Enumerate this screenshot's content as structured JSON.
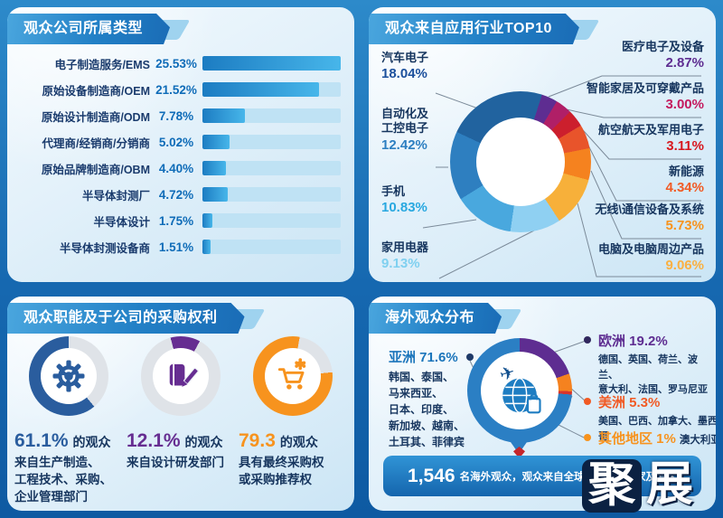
{
  "watermark": {
    "char1": "聚",
    "char2": "展"
  },
  "panels": {
    "company_type": {
      "title": "观众公司所属类型",
      "rows": [
        {
          "label": "电子制造服务/EMS",
          "value_text": "25.53%",
          "value": 25.53
        },
        {
          "label": "原始设备制造商/OEM",
          "value_text": "21.52%",
          "value": 21.52
        },
        {
          "label": "原始设计制造商/ODM",
          "value_text": "7.78%",
          "value": 7.78
        },
        {
          "label": "代理商/经销商/分销商",
          "value_text": "5.02%",
          "value": 5.02
        },
        {
          "label": "原始品牌制造商/OBM",
          "value_text": "4.40%",
          "value": 4.4
        },
        {
          "label": "半导体封测厂",
          "value_text": "4.72%",
          "value": 4.72
        },
        {
          "label": "半导体设计",
          "value_text": "1.75%",
          "value": 1.75
        },
        {
          "label": "半导体封测设备商",
          "value_text": "1.51%",
          "value": 1.51
        }
      ],
      "colors": {
        "fill_from": "#1c7cc2",
        "fill_to": "#47b6ea",
        "track": "#bfe2f4"
      }
    },
    "industry_top10": {
      "title": "观众来自应用行业TOP10",
      "items": [
        {
          "label": "汽车电子",
          "value_text": "18.04%",
          "value": 18.04,
          "color": "#21639f",
          "text_color": "#1b4f9c",
          "slot": "l0"
        },
        {
          "label": "医疗电子及设备",
          "value_text": "2.87%",
          "value": 2.87,
          "color": "#5e2d91",
          "text_color": "#5e2d91",
          "slot": "r0"
        },
        {
          "label": "智能家居及可穿戴产品",
          "value_text": "3.00%",
          "value": 3.0,
          "color": "#b01f67",
          "text_color": "#c41a5e",
          "slot": "r1"
        },
        {
          "label": "航空航天及军用电子",
          "value_text": "3.11%",
          "value": 3.11,
          "color": "#cc1f2d",
          "text_color": "#d7181f",
          "slot": "r2"
        },
        {
          "label": "新能源",
          "value_text": "4.34%",
          "value": 4.34,
          "color": "#e8542b",
          "text_color": "#f15a24",
          "slot": "r3"
        },
        {
          "label": "无线\\通信设备及系统",
          "value_text": "5.73%",
          "value": 5.73,
          "color": "#f5821f",
          "text_color": "#f7931e",
          "slot": "r4"
        },
        {
          "label": "电脑及电脑周边产品",
          "value_text": "9.06%",
          "value": 9.06,
          "color": "#f7b03a",
          "text_color": "#fbb040",
          "slot": "r5"
        },
        {
          "label": "家用电器",
          "value_text": "9.13%",
          "value": 9.13,
          "color": "#8fd0f2",
          "text_color": "#7fd0f0",
          "slot": "l3"
        },
        {
          "label": "手机",
          "value_text": "10.83%",
          "value": 10.83,
          "color": "#49a8de",
          "text_color": "#29a8e0",
          "slot": "l2"
        },
        {
          "label": "自动化及工控电子",
          "value_text": "12.42%",
          "value": 12.42,
          "color": "#2e7fc0",
          "text_color": "#2d7fc1",
          "slot": "l1"
        }
      ]
    },
    "roles": {
      "title": "观众职能及于公司的采购权利",
      "track_color": "#dfe3e8",
      "stats": [
        {
          "value_text": "61.1%",
          "pct": 61.1,
          "suffix": "的观众",
          "desc_lines": [
            "来自生产制造、",
            "工程技术、采购、",
            "企业管理部门"
          ],
          "color": "#2a5d9e",
          "icon": "gear-sync-icon"
        },
        {
          "value_text": "12.1%",
          "pct": 12.1,
          "suffix": "的观众",
          "desc_lines": [
            "来自设计研发部门"
          ],
          "color": "#662d91",
          "icon": "design-notebook-icon"
        },
        {
          "value_text": "79.3",
          "pct": 79.3,
          "suffix": "的观众",
          "desc_lines": [
            "具有最终采购权",
            "或采购推荐权"
          ],
          "color": "#f7931e",
          "icon": "purchase-cart-icon"
        }
      ]
    },
    "overseas": {
      "title": "海外观众分布",
      "regions": [
        {
          "name": "亚洲",
          "value_text": "71.6%",
          "value": 71.6,
          "color": "#2b7fc4",
          "text_color": "#1b75bb",
          "dot_color": "#1f3a68",
          "countries_lines": [
            "韩国、泰国、",
            "马来西亚、",
            "日本、印度、",
            "新加坡、越南、",
            "土耳其、菲律宾"
          ]
        },
        {
          "name": "欧洲",
          "value_text": "19.2%",
          "value": 19.2,
          "color": "#5e2d91",
          "text_color": "#5e2d91",
          "dot_color": "#30275d",
          "countries_lines": [
            "德国、英国、荷兰、波兰、",
            "意大利、法国、罗马尼亚"
          ]
        },
        {
          "name": "美洲",
          "value_text": "5.3%",
          "value": 5.3,
          "color": "#f5821f",
          "text_color": "#f15a24",
          "dot_color": "#f15a24",
          "countries_lines": [
            "美国、巴西、加拿大、墨西哥"
          ]
        },
        {
          "name": "其他地区",
          "value_text": "1%",
          "value": 1.0,
          "color": "#d7342c",
          "text_color": "#f7931e",
          "dot_color": "#f7931e",
          "countries_lines": [],
          "extra": "澳大利亚"
        }
      ],
      "footer": {
        "big1": "1,546",
        "text1": "名海外观众，观众来自全球",
        "big2": "86",
        "text2": "个国家及地区"
      }
    }
  },
  "chart_data": [
    {
      "type": "bar",
      "title": "观众公司所属类型",
      "orientation": "horizontal",
      "categories": [
        "电子制造服务/EMS",
        "原始设备制造商/OEM",
        "原始设计制造商/ODM",
        "代理商/经销商/分销商",
        "原始品牌制造商/OBM",
        "半导体封测厂",
        "半导体设计",
        "半导体封测设备商"
      ],
      "values": [
        25.53,
        21.52,
        7.78,
        5.02,
        4.4,
        4.72,
        1.75,
        1.51
      ],
      "unit": "%",
      "xlim": [
        0,
        25.53
      ],
      "legend": false,
      "grid": false
    },
    {
      "type": "pie",
      "subtype": "donut",
      "title": "观众来自应用行业TOP10",
      "labels": [
        "汽车电子",
        "医疗电子及设备",
        "智能家居及可穿戴产品",
        "航空航天及军用电子",
        "新能源",
        "无线\\通信设备及系统",
        "电脑及电脑周边产品",
        "家用电器",
        "手机",
        "自动化及工控电子"
      ],
      "values": [
        18.04,
        2.87,
        3.0,
        3.11,
        4.34,
        5.73,
        9.06,
        9.13,
        10.83,
        12.42
      ],
      "unit": "%",
      "legend_position": "around-callouts"
    },
    {
      "type": "pie",
      "subtype": "kpi-donuts",
      "title": "观众职能及于公司的采购权利",
      "items": [
        {
          "label": "的观众来自生产制造、工程技术、采购、企业管理部门",
          "value": 61.1,
          "value_text": "61.1%"
        },
        {
          "label": "的观众来自设计研发部门",
          "value": 12.1,
          "value_text": "12.1%"
        },
        {
          "label": "的观众具有最终采购权或采购推荐权",
          "value": 79.3,
          "value_text": "79.3"
        }
      ]
    },
    {
      "type": "pie",
      "subtype": "donut",
      "title": "海外观众分布",
      "labels": [
        "亚洲",
        "欧洲",
        "美洲",
        "其他地区"
      ],
      "values": [
        71.6,
        19.2,
        5.3,
        1.0
      ],
      "unit": "%",
      "annotation": "1,546 名海外观众，观众来自全球 86 个国家及地区"
    }
  ]
}
